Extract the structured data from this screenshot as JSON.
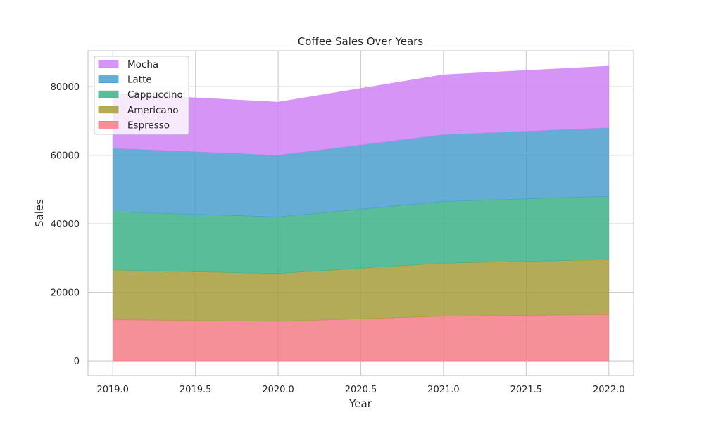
{
  "chart_data": {
    "type": "area",
    "stacked": true,
    "title": "Coffee Sales Over Years",
    "xlabel": "Year",
    "ylabel": "Sales",
    "x": [
      2019,
      2020,
      2021,
      2022
    ],
    "xlim": [
      2018.85,
      2022.15
    ],
    "ylim": [
      -4300,
      90500
    ],
    "x_ticks": [
      2019.0,
      2019.5,
      2020.0,
      2020.5,
      2021.0,
      2021.5,
      2022.0
    ],
    "x_tick_labels": [
      "2019.0",
      "2019.5",
      "2020.0",
      "2020.5",
      "2021.0",
      "2021.5",
      "2022.0"
    ],
    "y_ticks": [
      0,
      20000,
      40000,
      60000,
      80000
    ],
    "y_tick_labels": [
      "0",
      "20000",
      "40000",
      "60000",
      "80000"
    ],
    "grid": true,
    "legend_position": "top-left",
    "series": [
      {
        "name": "Espresso",
        "values": [
          12000,
          11500,
          13000,
          13500
        ],
        "color": "#f37c86"
      },
      {
        "name": "Americano",
        "values": [
          14500,
          14000,
          15500,
          16000
        ],
        "color": "#a69c3a"
      },
      {
        "name": "Cappuccino",
        "values": [
          17000,
          16500,
          18000,
          18500
        ],
        "color": "#3db288"
      },
      {
        "name": "Latte",
        "values": [
          18500,
          18000,
          19500,
          20000
        ],
        "color": "#4a9fcd"
      },
      {
        "name": "Mocha",
        "values": [
          16000,
          15500,
          17500,
          18000
        ],
        "color": "#cf83f5"
      }
    ],
    "legend_order": [
      "Mocha",
      "Latte",
      "Cappuccino",
      "Americano",
      "Espresso"
    ]
  }
}
